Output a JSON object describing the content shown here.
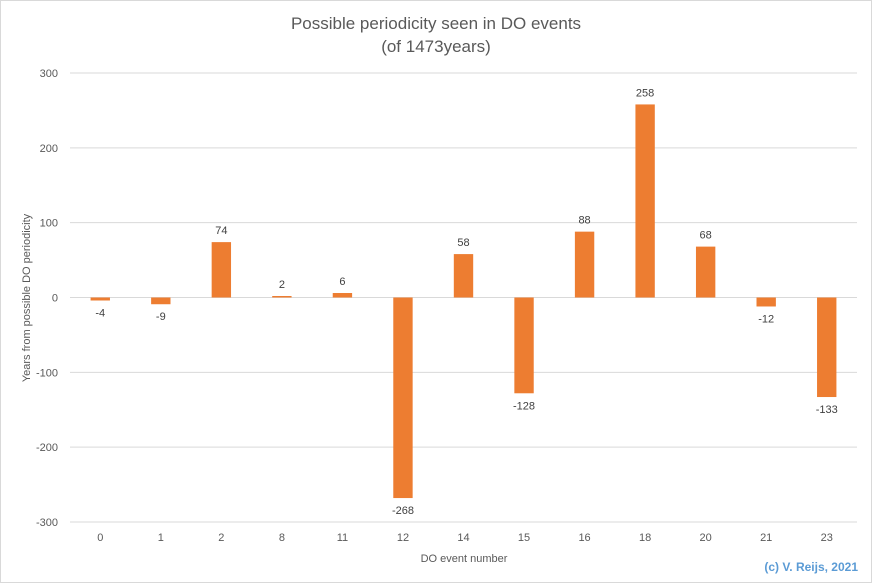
{
  "chart_data": {
    "type": "bar",
    "title": "Possible periodicity seen in  DO events",
    "subtitle": "(of 1473years)",
    "xlabel": "DO event number",
    "ylabel": "Years from possible DO periodicity",
    "categories": [
      "0",
      "1",
      "2",
      "8",
      "11",
      "12",
      "14",
      "15",
      "16",
      "18",
      "20",
      "21",
      "23"
    ],
    "values": [
      -4,
      -9,
      74,
      2,
      6,
      -268,
      58,
      -128,
      88,
      258,
      68,
      -12,
      -133
    ],
    "data_labels": [
      "-4",
      "-9",
      "74",
      "2",
      "6",
      "-268",
      "58",
      "-128",
      "88",
      "258",
      "68",
      "-12",
      "-133"
    ],
    "ylim": [
      -300,
      300
    ],
    "yticks": [
      300,
      200,
      100,
      0,
      -100,
      -200,
      -300
    ],
    "ytick_labels": [
      "300",
      "200",
      "100",
      "0",
      "-100",
      "-200",
      "-300"
    ],
    "grid": true,
    "legend": "none",
    "bar_color": "#ed7d31",
    "grid_color": "#d9d9d9",
    "annotation": "(c) V. Reijs, 2021",
    "annotation_color": "#5b9bd5"
  }
}
